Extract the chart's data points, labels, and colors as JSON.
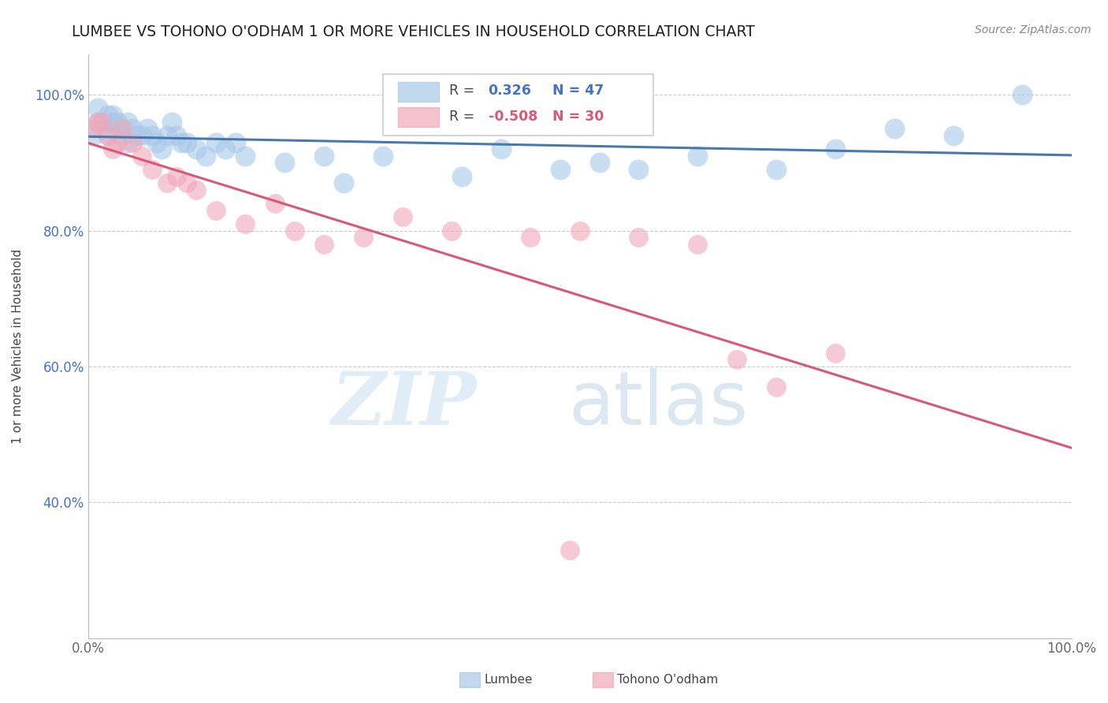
{
  "title": "LUMBEE VS TOHONO O'ODHAM 1 OR MORE VEHICLES IN HOUSEHOLD CORRELATION CHART",
  "source_text": "Source: ZipAtlas.com",
  "ylabel": "1 or more Vehicles in Household",
  "xlabel_lumbee": "Lumbee",
  "xlabel_tohono": "Tohono O'odham",
  "watermark_zip": "ZIP",
  "watermark_atlas": "atlas",
  "xlim": [
    0.0,
    1.0
  ],
  "ylim": [
    0.2,
    1.06
  ],
  "yticks": [
    0.4,
    0.6,
    0.8,
    1.0
  ],
  "ytick_labels": [
    "40.0%",
    "60.0%",
    "80.0%",
    "100.0%"
  ],
  "xticks": [
    0.0,
    1.0
  ],
  "xtick_labels": [
    "0.0%",
    "100.0%"
  ],
  "lumbee_R": 0.326,
  "lumbee_N": 47,
  "tohono_R": -0.508,
  "tohono_N": 30,
  "lumbee_color": "#a8c8e8",
  "tohono_color": "#f0a8b8",
  "lumbee_line_color": "#4878b0",
  "tohono_line_color": "#d85878",
  "lumbee_x": [
    0.005,
    0.01,
    0.015,
    0.02,
    0.025,
    0.03,
    0.035,
    0.04,
    0.045,
    0.05,
    0.01,
    0.02,
    0.025,
    0.03,
    0.035,
    0.04,
    0.055,
    0.06,
    0.065,
    0.07,
    0.075,
    0.08,
    0.085,
    0.09,
    0.095,
    0.1,
    0.11,
    0.12,
    0.13,
    0.14,
    0.15,
    0.16,
    0.2,
    0.24,
    0.26,
    0.3,
    0.38,
    0.42,
    0.48,
    0.52,
    0.56,
    0.62,
    0.7,
    0.76,
    0.82,
    0.88,
    0.95
  ],
  "lumbee_y": [
    0.94,
    0.96,
    0.95,
    0.94,
    0.97,
    0.96,
    0.95,
    0.96,
    0.95,
    0.94,
    0.98,
    0.97,
    0.96,
    0.95,
    0.94,
    0.93,
    0.94,
    0.95,
    0.94,
    0.93,
    0.92,
    0.94,
    0.96,
    0.94,
    0.93,
    0.93,
    0.92,
    0.91,
    0.93,
    0.92,
    0.93,
    0.91,
    0.9,
    0.91,
    0.87,
    0.91,
    0.88,
    0.92,
    0.89,
    0.9,
    0.89,
    0.91,
    0.89,
    0.92,
    0.95,
    0.94,
    1.0
  ],
  "tohono_x": [
    0.005,
    0.01,
    0.015,
    0.02,
    0.025,
    0.03,
    0.035,
    0.045,
    0.055,
    0.065,
    0.08,
    0.09,
    0.1,
    0.11,
    0.13,
    0.16,
    0.19,
    0.21,
    0.24,
    0.28,
    0.32,
    0.37,
    0.45,
    0.5,
    0.56,
    0.62,
    0.66,
    0.7,
    0.76,
    0.49
  ],
  "tohono_y": [
    0.95,
    0.96,
    0.96,
    0.94,
    0.92,
    0.93,
    0.95,
    0.93,
    0.91,
    0.89,
    0.87,
    0.88,
    0.87,
    0.86,
    0.83,
    0.81,
    0.84,
    0.8,
    0.78,
    0.79,
    0.82,
    0.8,
    0.79,
    0.8,
    0.79,
    0.78,
    0.61,
    0.57,
    0.62,
    0.33
  ]
}
